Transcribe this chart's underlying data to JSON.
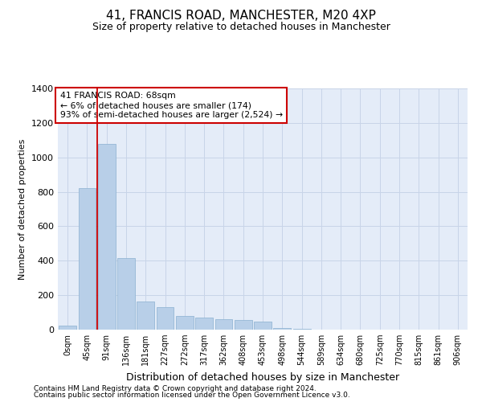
{
  "title": "41, FRANCIS ROAD, MANCHESTER, M20 4XP",
  "subtitle": "Size of property relative to detached houses in Manchester",
  "xlabel": "Distribution of detached houses by size in Manchester",
  "ylabel": "Number of detached properties",
  "footnote1": "Contains HM Land Registry data © Crown copyright and database right 2024.",
  "footnote2": "Contains public sector information licensed under the Open Government Licence v3.0.",
  "annotation_title": "41 FRANCIS ROAD: 68sqm",
  "annotation_line1": "← 6% of detached houses are smaller (174)",
  "annotation_line2": "93% of semi-detached houses are larger (2,524) →",
  "property_size_sqm": 68,
  "bar_categories": [
    "0sqm",
    "45sqm",
    "91sqm",
    "136sqm",
    "181sqm",
    "227sqm",
    "272sqm",
    "317sqm",
    "362sqm",
    "408sqm",
    "453sqm",
    "498sqm",
    "544sqm",
    "589sqm",
    "634sqm",
    "680sqm",
    "725sqm",
    "770sqm",
    "815sqm",
    "861sqm",
    "906sqm"
  ],
  "bar_values": [
    25,
    820,
    1080,
    415,
    165,
    130,
    80,
    70,
    60,
    55,
    45,
    10,
    5,
    0,
    0,
    0,
    0,
    0,
    0,
    0,
    0
  ],
  "bar_color": "#b8cfe8",
  "bar_edge_color": "#8ab0d0",
  "grid_color": "#c8d4e8",
  "background_color": "#e4ecf8",
  "marker_color": "#cc0000",
  "ylim": [
    0,
    1400
  ],
  "yticks": [
    0,
    200,
    400,
    600,
    800,
    1000,
    1200,
    1400
  ],
  "title_fontsize": 11,
  "subtitle_fontsize": 9,
  "ylabel_fontsize": 8,
  "xlabel_fontsize": 9
}
